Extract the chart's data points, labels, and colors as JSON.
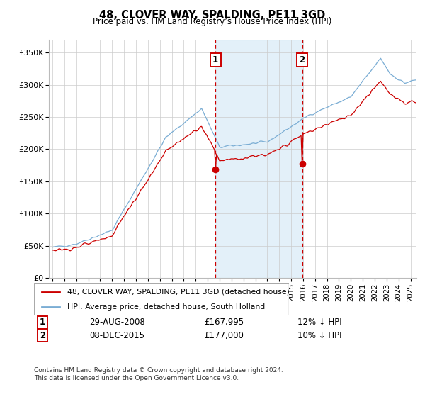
{
  "title": "48, CLOVER WAY, SPALDING, PE11 3GD",
  "subtitle": "Price paid vs. HM Land Registry’s House Price Index (HPI)",
  "legend_label_red": "48, CLOVER WAY, SPALDING, PE11 3GD (detached house)",
  "legend_label_blue": "HPI: Average price, detached house, South Holland",
  "footnote1": "Contains HM Land Registry data © Crown copyright and database right 2024.",
  "footnote2": "This data is licensed under the Open Government Licence v3.0.",
  "transaction1_date": "29-AUG-2008",
  "transaction1_price": "£167,995",
  "transaction1_note": "12% ↓ HPI",
  "transaction2_date": "08-DEC-2015",
  "transaction2_price": "£177,000",
  "transaction2_note": "10% ↓ HPI",
  "transaction1_year": 2008.66,
  "transaction2_year": 2015.92,
  "ylim": [
    0,
    370000
  ],
  "xlim_start": 1994.7,
  "xlim_end": 2025.5,
  "red_color": "#cc0000",
  "blue_color": "#7aadd4",
  "shade_color": "#d8eaf7",
  "vline_color": "#cc0000",
  "background_color": "#ffffff",
  "grid_color": "#cccccc"
}
